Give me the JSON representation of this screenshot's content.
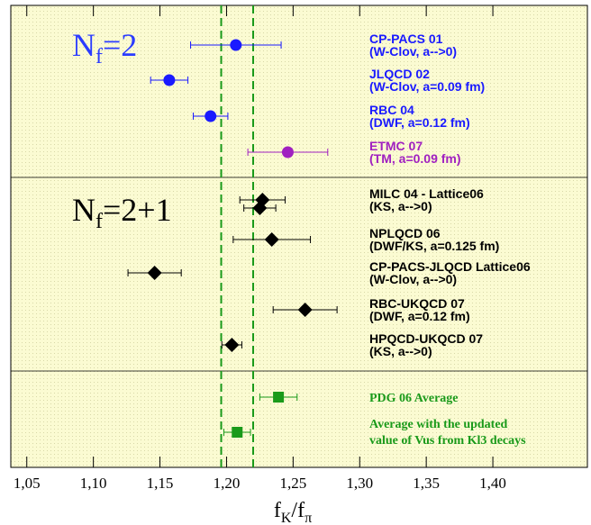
{
  "chart_data": {
    "type": "scatter",
    "xlim": [
      1.038,
      1.471
    ],
    "xticks": [
      {
        "value": 1.05,
        "label": "1,05"
      },
      {
        "value": 1.1,
        "label": "1,10"
      },
      {
        "value": 1.15,
        "label": "1,15"
      },
      {
        "value": 1.2,
        "label": "1,20"
      },
      {
        "value": 1.25,
        "label": "1,25"
      },
      {
        "value": 1.3,
        "label": "1,30"
      },
      {
        "value": 1.35,
        "label": "1,35"
      },
      {
        "value": 1.4,
        "label": "1,40"
      }
    ],
    "x_label": [
      "f",
      "K",
      "/f",
      "π"
    ],
    "ref_lines": [
      1.196,
      1.22
    ],
    "ref_color": "#1a9a1a",
    "groups": [
      {
        "label": [
          "N",
          "f",
          "=2"
        ],
        "color": "#2b3cff",
        "marker": "circle",
        "points": [
          {
            "label": [
              "CP-PACS 01",
              "(W-Clov, a-->0)"
            ],
            "value": 1.207,
            "error": 0.034,
            "color": "#1a1aff"
          },
          {
            "label": [
              "JLQCD 02",
              "(W-Clov, a=0.09 fm)"
            ],
            "value": 1.157,
            "error": 0.014,
            "color": "#1a1aff"
          },
          {
            "label": [
              "RBC 04",
              "(DWF, a=0.12 fm)"
            ],
            "value": 1.188,
            "error": 0.013,
            "color": "#1a1aff"
          },
          {
            "label": [
              "ETMC 07",
              "(TM, a=0.09 fm)"
            ],
            "value": 1.246,
            "error": 0.03,
            "color": "#a020c0"
          }
        ]
      },
      {
        "label": [
          "N",
          "f",
          "=2+1"
        ],
        "color": "#000000",
        "marker": "diamond",
        "points": [
          {
            "label": [
              "MILC 04 - Lattice06",
              "(KS, a-->0)"
            ],
            "value": 1.227,
            "error": 0.017,
            "color": "#000000"
          },
          {
            "value": 1.225,
            "error": 0.012,
            "color": "#000000"
          },
          {
            "label": [
              "NPLQCD 06",
              "(DWF/KS, a=0.125 fm)"
            ],
            "value": 1.234,
            "error": 0.029,
            "color": "#000000"
          },
          {
            "label": [
              "CP-PACS-JLQCD Lattice06",
              "(W-Clov, a-->0)"
            ],
            "value": 1.146,
            "error": 0.02,
            "color": "#000000"
          },
          {
            "label": [
              "RBC-UKQCD 07",
              "(DWF, a=0.12 fm)"
            ],
            "value": 1.259,
            "error": 0.024,
            "color": "#000000"
          },
          {
            "label": [
              "HPQCD-UKQCD 07",
              "(KS, a-->0)"
            ],
            "value": 1.204,
            "error": 0.0075,
            "color": "#000000"
          }
        ]
      },
      {
        "marker": "square",
        "points": [
          {
            "label": [
              "PDG 06 Average"
            ],
            "value": 1.239,
            "error": 0.014,
            "color": "#1a9a1a"
          },
          {
            "label": [
              "Average with the updated",
              "value of Vus from Kl3 decays"
            ],
            "value": 1.208,
            "error": 0.01,
            "color": "#1a9a1a"
          }
        ]
      }
    ]
  }
}
